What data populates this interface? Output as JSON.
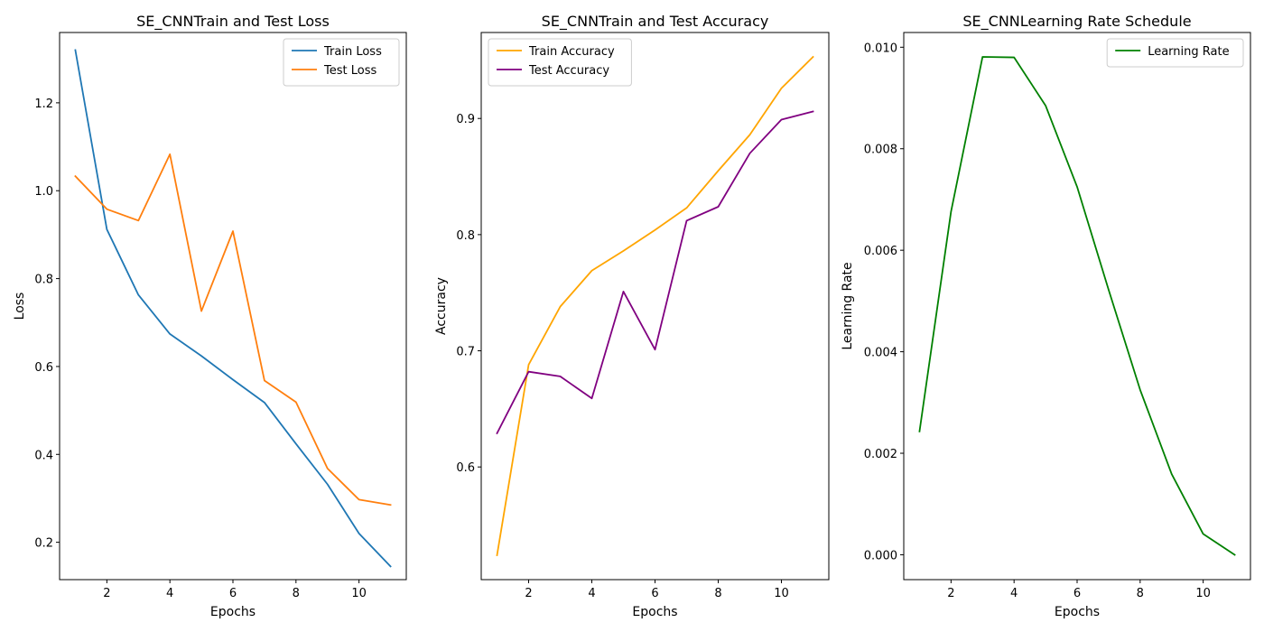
{
  "chart_data": [
    {
      "type": "line",
      "title": "SE_CNNTrain and Test Loss",
      "xlabel": "Epochs",
      "ylabel": "Loss",
      "xlim": [
        0.5,
        11.5
      ],
      "ylim": [
        0.115,
        1.36
      ],
      "xticks": [
        2,
        4,
        6,
        8,
        10
      ],
      "yticks": [
        0.2,
        0.4,
        0.6,
        0.8,
        1.0,
        1.2
      ],
      "ytick_decimals": 1,
      "grid": false,
      "legend_position": "top-right",
      "x": [
        1,
        2,
        3,
        4,
        5,
        6,
        7,
        8,
        9,
        10,
        11
      ],
      "series": [
        {
          "name": "Train Loss",
          "color": "#1f77b4",
          "values": [
            1.32,
            0.912,
            0.763,
            0.674,
            0.624,
            0.57,
            0.518,
            0.424,
            0.332,
            0.22,
            0.145
          ]
        },
        {
          "name": "Test Loss",
          "color": "#ff7f0e",
          "values": [
            1.033,
            0.958,
            0.932,
            1.083,
            0.726,
            0.908,
            0.568,
            0.519,
            0.368,
            0.297,
            0.285
          ]
        }
      ]
    },
    {
      "type": "line",
      "title": "SE_CNNTrain and Test Accuracy",
      "xlabel": "Epochs",
      "ylabel": "Accuracy",
      "xlim": [
        0.5,
        11.5
      ],
      "ylim": [
        0.503,
        0.974
      ],
      "xticks": [
        2,
        4,
        6,
        8,
        10
      ],
      "yticks": [
        0.6,
        0.7,
        0.8,
        0.9
      ],
      "ytick_decimals": 1,
      "grid": false,
      "legend_position": "top-left",
      "x": [
        1,
        2,
        3,
        4,
        5,
        6,
        7,
        8,
        9,
        10,
        11
      ],
      "series": [
        {
          "name": "Train Accuracy",
          "color": "#ffa500",
          "values": [
            0.524,
            0.688,
            0.738,
            0.769,
            0.786,
            0.804,
            0.823,
            0.855,
            0.886,
            0.926,
            0.953
          ]
        },
        {
          "name": "Test Accuracy",
          "color": "#800080",
          "values": [
            0.629,
            0.682,
            0.678,
            0.659,
            0.751,
            0.701,
            0.812,
            0.824,
            0.87,
            0.899,
            0.906
          ]
        }
      ]
    },
    {
      "type": "line",
      "title": "SE_CNNLearning Rate Schedule",
      "xlabel": "Epochs",
      "ylabel": "Learning Rate",
      "xlim": [
        0.5,
        11.5
      ],
      "ylim": [
        -0.00049,
        0.01029
      ],
      "xticks": [
        2,
        4,
        6,
        8,
        10
      ],
      "yticks": [
        0.0,
        0.002,
        0.004,
        0.006,
        0.008,
        0.01
      ],
      "ytick_decimals": 3,
      "grid": false,
      "legend_position": "top-right",
      "x": [
        1,
        2,
        3,
        4,
        5,
        6,
        7,
        8,
        9,
        10,
        11
      ],
      "series": [
        {
          "name": "Learning Rate",
          "color": "#008000",
          "values": [
            0.00243,
            0.00676,
            0.00981,
            0.0098,
            0.00885,
            0.00725,
            0.00522,
            0.00325,
            0.00159,
            0.00041,
            0.0
          ]
        }
      ]
    }
  ]
}
